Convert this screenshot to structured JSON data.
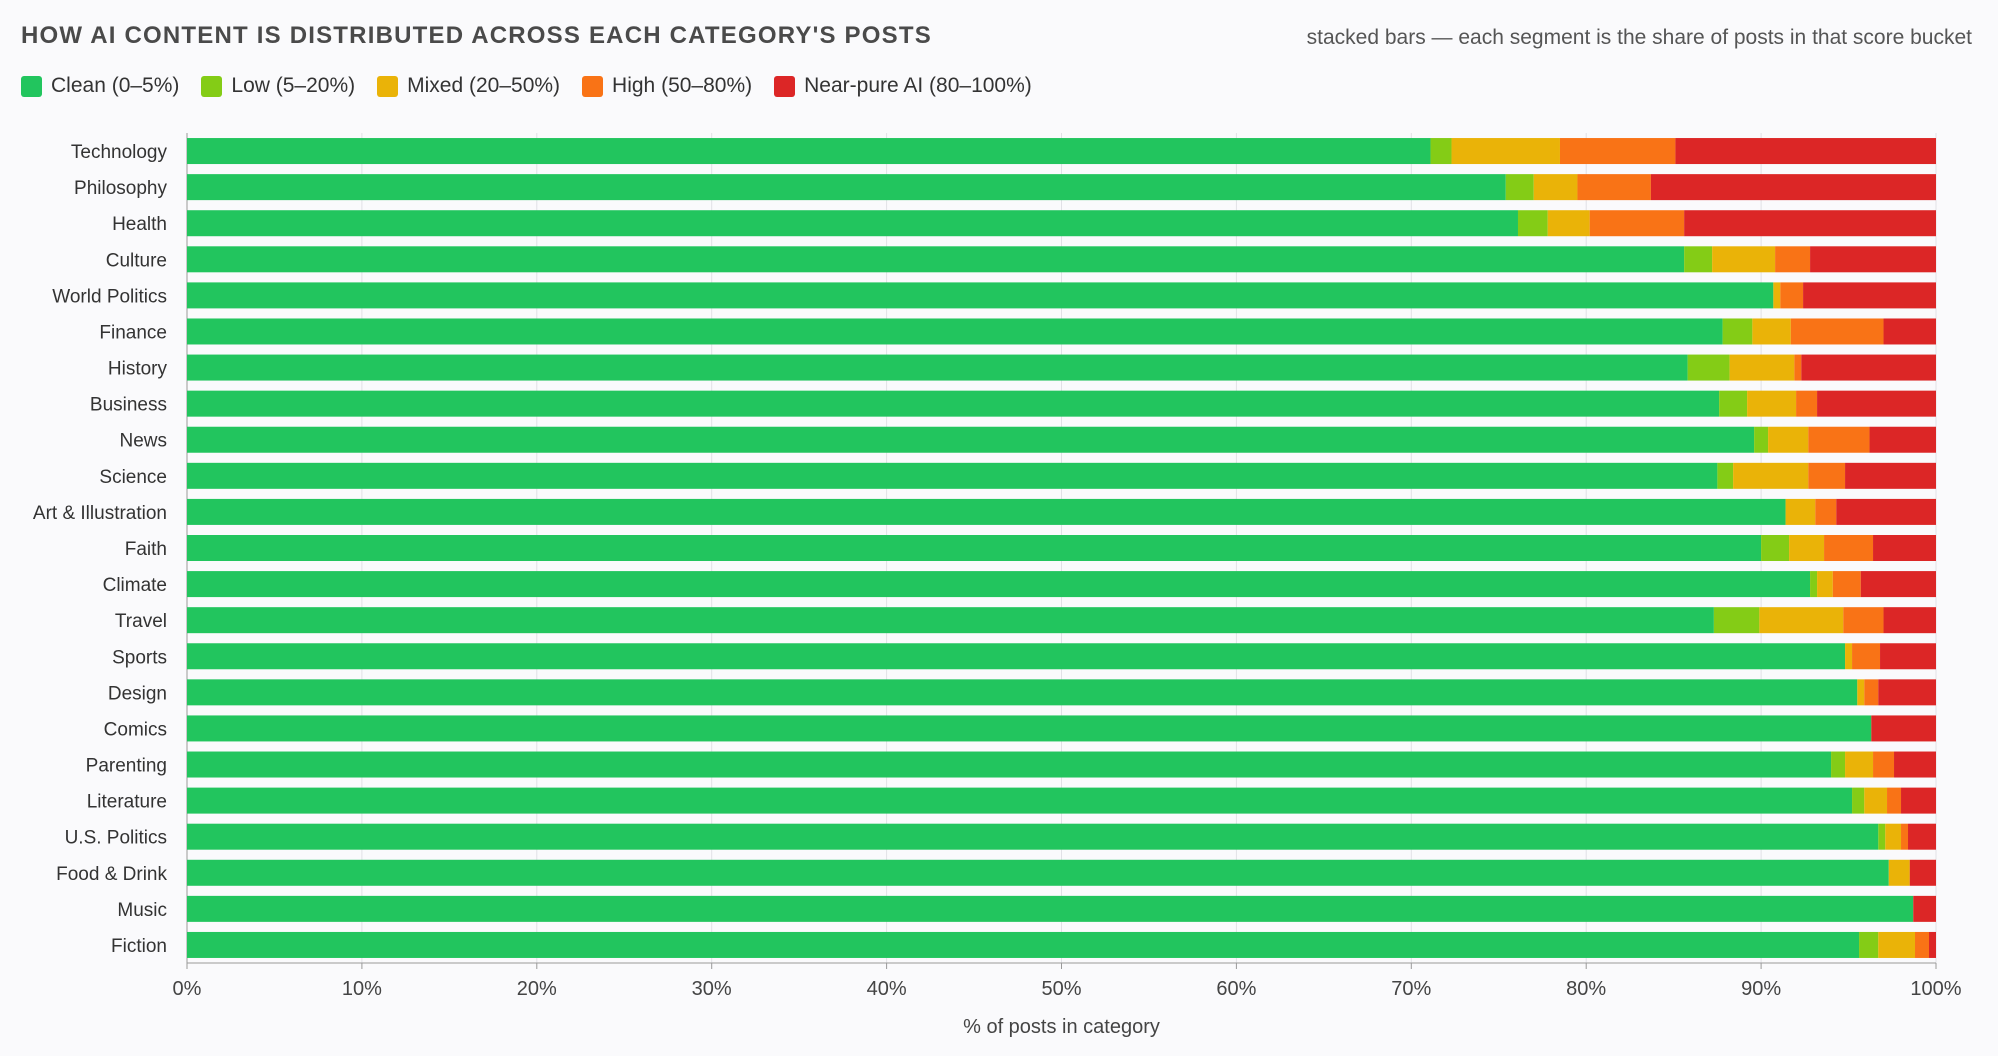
{
  "chart_data": {
    "type": "bar",
    "orientation": "horizontal",
    "stacked": true,
    "title": "HOW AI CONTENT IS DISTRIBUTED ACROSS EACH CATEGORY'S POSTS",
    "subtitle": "stacked bars — each segment is the share of posts in that score bucket",
    "xlabel": "% of posts in category",
    "ylabel": "",
    "xlim": [
      0,
      100
    ],
    "x_ticks": [
      "0%",
      "10%",
      "20%",
      "30%",
      "40%",
      "50%",
      "60%",
      "70%",
      "80%",
      "90%",
      "100%"
    ],
    "grid": true,
    "legend_position": "top-left",
    "categories": [
      "Technology",
      "Philosophy",
      "Health",
      "Culture",
      "World Politics",
      "Finance",
      "History",
      "Business",
      "News",
      "Science",
      "Art & Illustration",
      "Faith",
      "Climate",
      "Travel",
      "Sports",
      "Design",
      "Comics",
      "Parenting",
      "Literature",
      "U.S. Politics",
      "Food & Drink",
      "Music",
      "Fiction"
    ],
    "series": [
      {
        "name": "Clean (0–5%)",
        "color": "#22c55e",
        "values": [
          71.1,
          75.4,
          76.1,
          85.6,
          90.7,
          87.8,
          85.8,
          87.6,
          89.6,
          87.5,
          91.4,
          90.0,
          92.8,
          87.3,
          94.8,
          95.5,
          96.3,
          94.0,
          95.2,
          96.7,
          97.3,
          98.7,
          95.6
        ]
      },
      {
        "name": "Low (5–20%)",
        "color": "#84cc16",
        "values": [
          1.2,
          1.6,
          1.7,
          1.6,
          0,
          1.7,
          2.4,
          1.6,
          0.8,
          0.9,
          0,
          1.6,
          0.4,
          2.6,
          0,
          0,
          0,
          0.8,
          0.7,
          0.4,
          0,
          0,
          1.1
        ]
      },
      {
        "name": "Mixed (20–50%)",
        "color": "#eab308",
        "values": [
          6.2,
          2.5,
          2.4,
          3.6,
          0.4,
          2.2,
          3.7,
          2.8,
          2.3,
          4.3,
          1.7,
          2.0,
          0.9,
          4.8,
          0.4,
          0.4,
          0,
          1.6,
          1.3,
          0.9,
          1.2,
          0,
          2.1
        ]
      },
      {
        "name": "High (50–80%)",
        "color": "#f97316",
        "values": [
          6.6,
          4.2,
          5.4,
          2.0,
          1.3,
          5.3,
          0.4,
          1.2,
          3.5,
          2.1,
          1.2,
          2.8,
          1.6,
          2.3,
          1.6,
          0.8,
          0,
          1.2,
          0.8,
          0.4,
          0,
          0,
          0.8
        ]
      },
      {
        "name": "Near-pure AI (80–100%)",
        "color": "#dc2626",
        "values": [
          14.9,
          16.3,
          14.4,
          7.2,
          7.6,
          3.0,
          7.7,
          6.8,
          3.8,
          5.2,
          5.7,
          3.6,
          4.3,
          3.0,
          3.2,
          3.3,
          3.7,
          2.4,
          2.0,
          1.6,
          1.5,
          1.3,
          0.4
        ]
      }
    ]
  }
}
